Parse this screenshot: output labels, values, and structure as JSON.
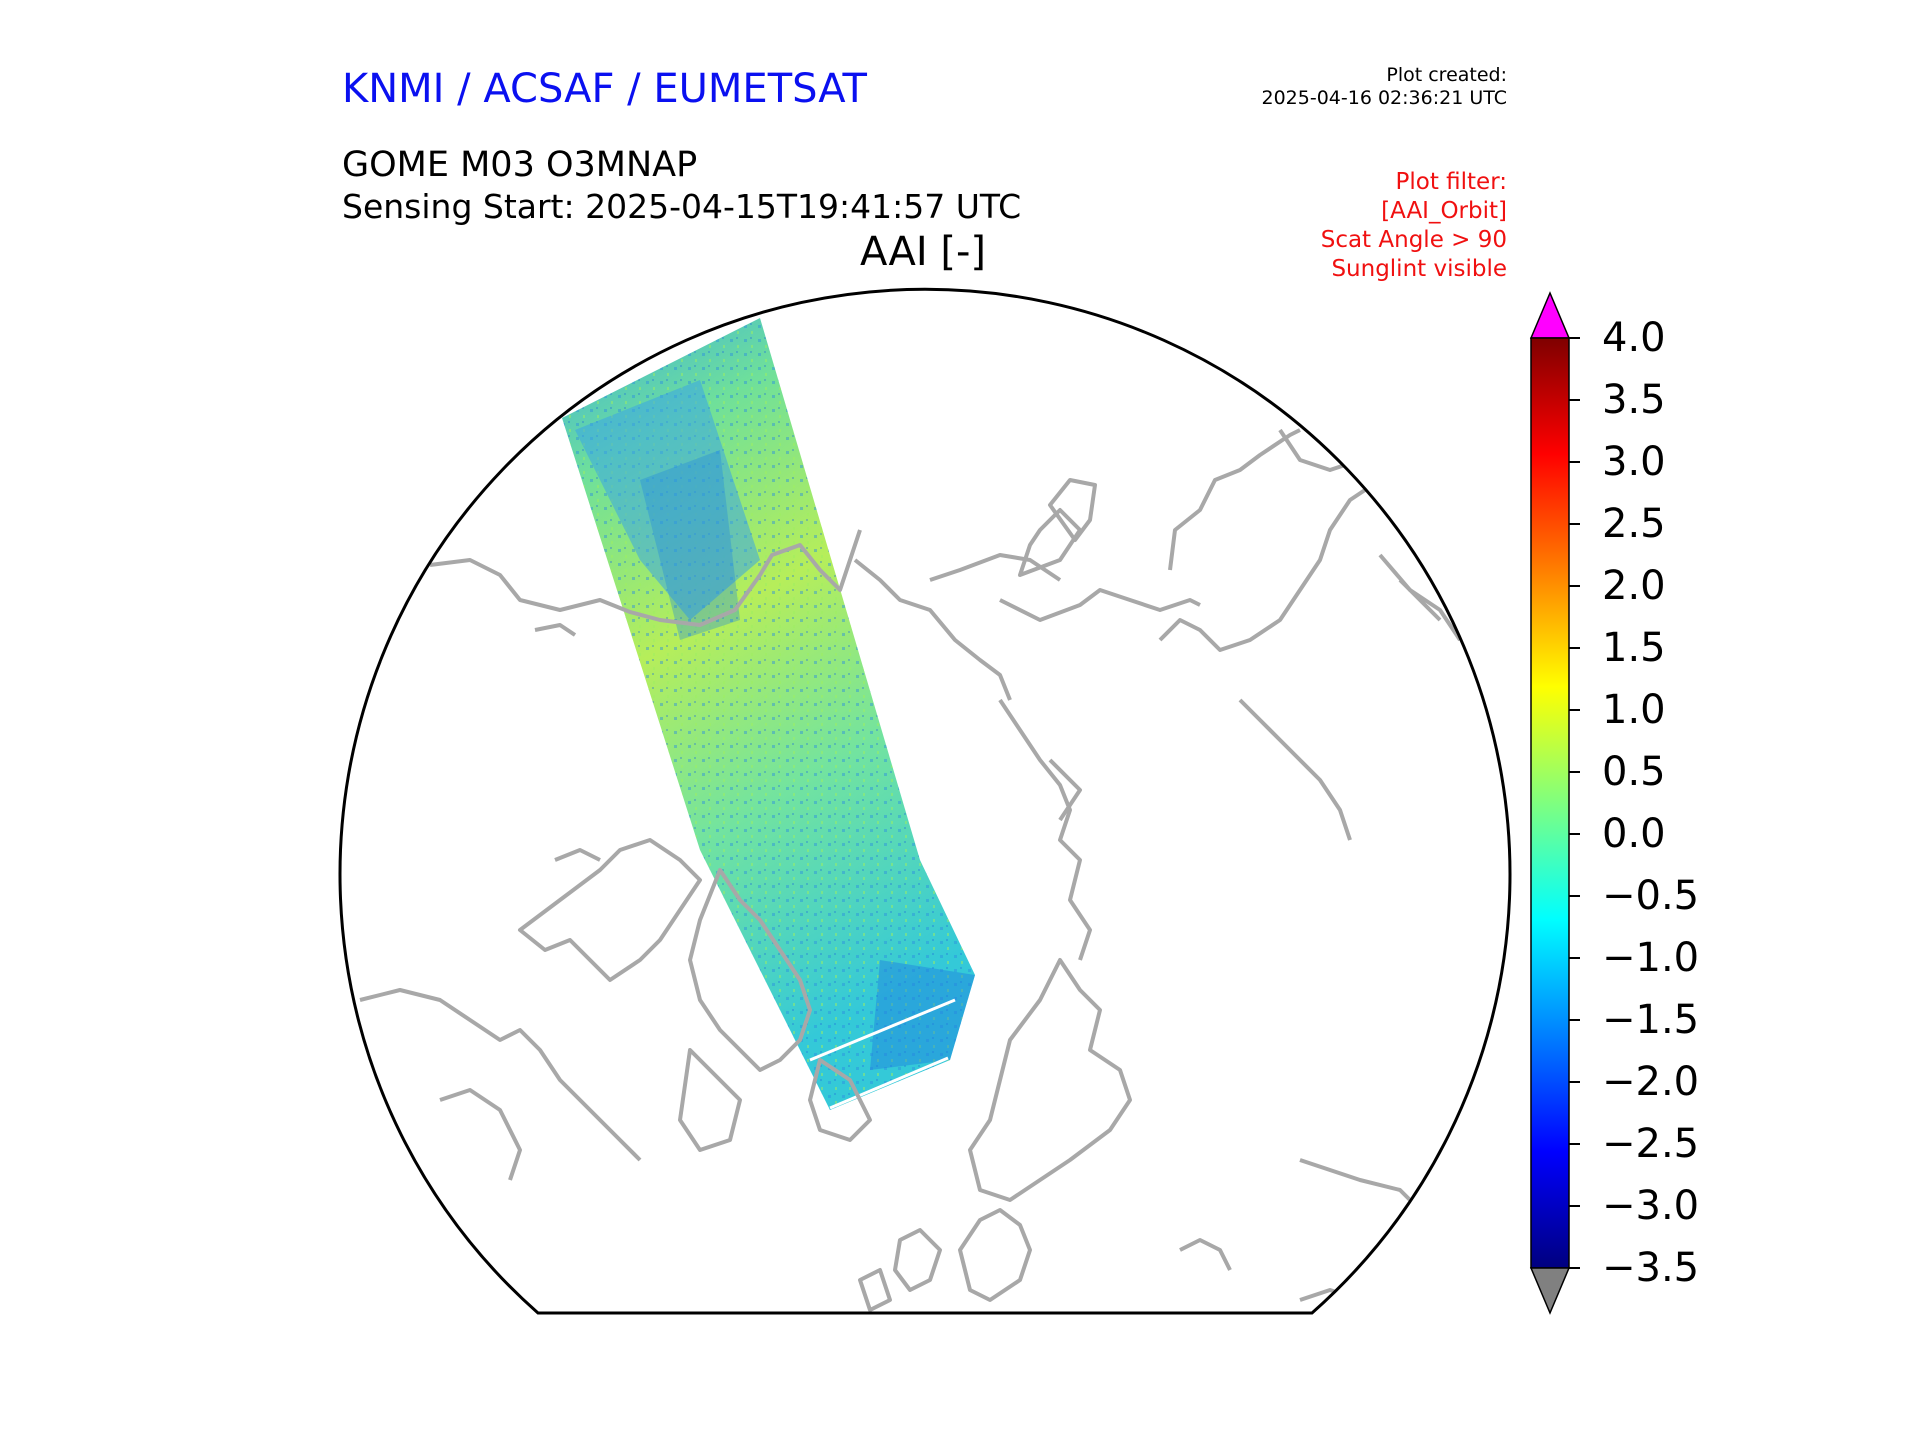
{
  "header": {
    "organisation": "KNMI / ACSAF / EUMETSAT",
    "plot_created_label": "Plot created:",
    "plot_created_value": "2025-04-16 02:36:21 UTC",
    "product": "GOME M03 O3MNAP",
    "sensing_start": "Sensing Start: 2025-04-15T19:41:57 UTC",
    "map_title": "AAI [-]"
  },
  "plot_filter": {
    "label": "Plot filter:",
    "lines": [
      "[AAI_Orbit]",
      "Scat Angle > 90",
      "Sunglint visible"
    ]
  },
  "colorbar": {
    "ticks": [
      "4.0",
      "3.5",
      "3.0",
      "2.5",
      "2.0",
      "1.5",
      "1.0",
      "0.5",
      "0.0",
      "−0.5",
      "−1.0",
      "−1.5",
      "−2.0",
      "−2.5",
      "−3.0",
      "−3.5"
    ],
    "min": -3.5,
    "max": 4.0,
    "over_color": "#ff00ff",
    "under_color": "#808080",
    "colors": [
      "#00007f",
      "#0000ff",
      "#007fff",
      "#00ffff",
      "#7fff7f",
      "#ffff00",
      "#ff7f00",
      "#ff0000",
      "#7f0000"
    ]
  },
  "map_colors": {
    "coastline": "#a8a8a8",
    "swath_base": "#5fe0a8",
    "swath_high": "#b9f050",
    "swath_low": "#2aa6e6"
  }
}
